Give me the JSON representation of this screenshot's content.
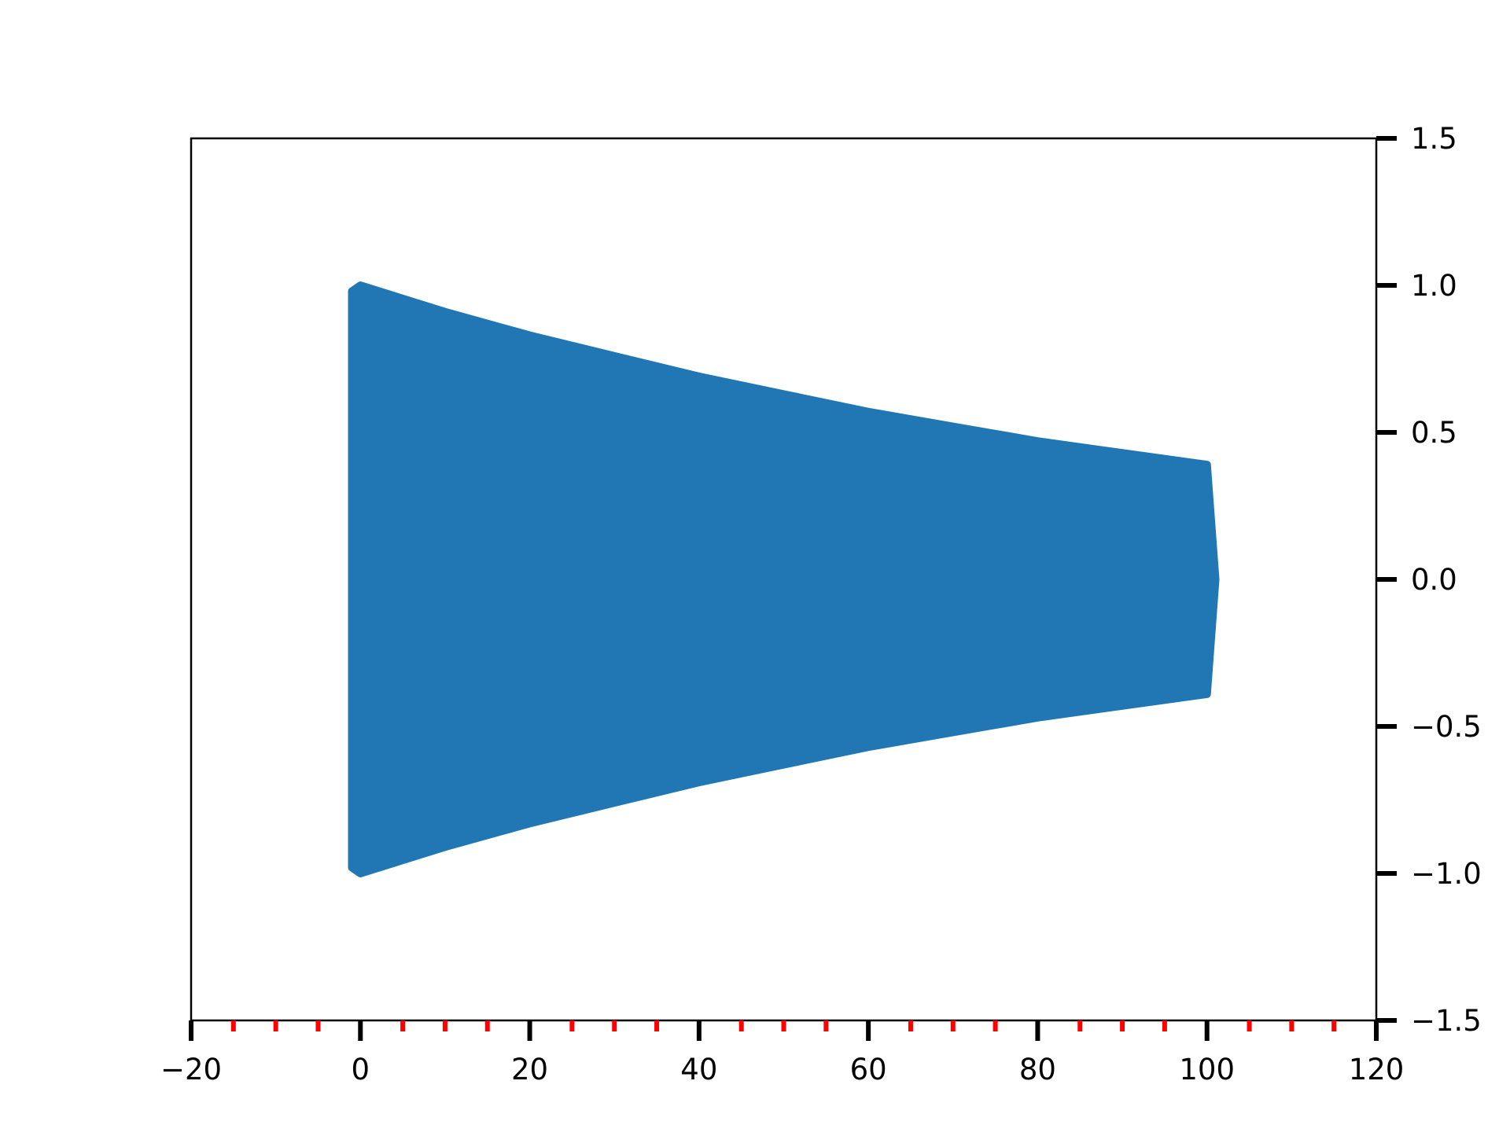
{
  "chart_data": {
    "type": "area",
    "title": "",
    "xlabel": "",
    "ylabel": "",
    "xlim": [
      -20,
      120
    ],
    "ylim": [
      -1.5,
      1.5
    ],
    "x_major_ticks": [
      -20,
      0,
      20,
      40,
      60,
      80,
      100,
      120
    ],
    "x_tick_labels": [
      "−20",
      "0",
      "20",
      "40",
      "60",
      "80",
      "100",
      "120"
    ],
    "x_minor_ticks": [
      -15,
      -10,
      -5,
      5,
      10,
      15,
      25,
      30,
      35,
      45,
      50,
      55,
      65,
      70,
      75,
      85,
      90,
      95,
      105,
      110,
      115
    ],
    "y_major_ticks": [
      -1.5,
      -1.0,
      -0.5,
      0.0,
      0.5,
      1.0,
      1.5
    ],
    "y_tick_labels": [
      "−1.5",
      "−1.0",
      "−0.5",
      "0.0",
      "0.5",
      "1.0",
      "1.5"
    ],
    "y_axis_side": "right",
    "grid": false,
    "legend": "none",
    "series": [
      {
        "description_of_envelope": "dense damped oscillation, filled appearance",
        "x": [
          0,
          10,
          20,
          30,
          40,
          50,
          60,
          70,
          80,
          90,
          100
        ],
        "upper": [
          1.0,
          0.91,
          0.83,
          0.76,
          0.69,
          0.63,
          0.57,
          0.52,
          0.47,
          0.43,
          0.39
        ],
        "lower": [
          -1.0,
          -0.91,
          -0.83,
          -0.76,
          -0.69,
          -0.63,
          -0.57,
          -0.52,
          -0.47,
          -0.43,
          -0.39
        ],
        "x_start": -1,
        "x_end": 101
      }
    ],
    "colors": {
      "series": "#2077b4",
      "minor_ticks": "#ff0000",
      "major_ticks": "#000000",
      "spines": "#000000",
      "background": "#ffffff"
    }
  }
}
